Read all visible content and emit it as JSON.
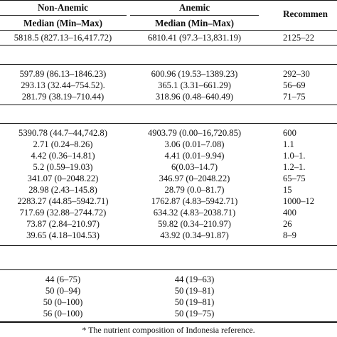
{
  "header": {
    "group1": "Non-Anemic",
    "group2": "Anemic",
    "group3": "Recommen",
    "sub1": "Median (Min–Max)",
    "sub2": "Median (Min–Max)"
  },
  "sections": [
    {
      "rows": [
        {
          "non_anemic": "5818.5 (827.13–16,417.72)",
          "anemic": "6810.41 (97.3–13,831.19)",
          "recommended": "2125–22"
        }
      ]
    },
    {
      "rows": [
        {
          "non_anemic": "597.89 (86.13–1846.23)",
          "anemic": "600.96 (19.53–1389.23)",
          "recommended": "292–30"
        },
        {
          "non_anemic": "293.13 (32.44–754.52).",
          "anemic": "365.1 (3.31–661.29)",
          "recommended": "56–69"
        },
        {
          "non_anemic": "281.79 (38.19–710.44)",
          "anemic": "318.96 (0.48–640.49)",
          "recommended": "71–75"
        }
      ]
    },
    {
      "rows": [
        {
          "non_anemic": "5390.78 (44.7–44,742.8)",
          "anemic": "4903.79 (0.00–16,720.85)",
          "recommended": "600"
        },
        {
          "non_anemic": "2.71 (0.24–8.26)",
          "anemic": "3.06 (0.01–7.08)",
          "recommended": "1.1"
        },
        {
          "non_anemic": "4.42 (0.36–14.81)",
          "anemic": "4.41 (0.01–9.94)",
          "recommended": "1.0–1."
        },
        {
          "non_anemic": "5.2 (0.59–19.03)",
          "anemic": "6(0.03–14.7)",
          "recommended": "1.2–1."
        },
        {
          "non_anemic": "341.07 (0–2048.22)",
          "anemic": "346.97 (0–2048.22)",
          "recommended": "65–75"
        },
        {
          "non_anemic": "28.98 (2.43–145.8)",
          "anemic": "28.79 (0.0–81.7)",
          "recommended": "15"
        },
        {
          "non_anemic": "2283.27 (44.85–5942.71)",
          "anemic": "1762.87 (4.83–5942.71)",
          "recommended": "1000–12"
        },
        {
          "non_anemic": "717.69 (32.88–2744.72)",
          "anemic": "634.32 (4.83–2038.71)",
          "recommended": "400"
        },
        {
          "non_anemic": "73.87 (2.84–210.97)",
          "anemic": "59.82 (0.34–210.97)",
          "recommended": "26"
        },
        {
          "non_anemic": "39.65 (4.18–104.53)",
          "anemic": "43.92 (0.34–91.87)",
          "recommended": "8–9"
        }
      ]
    },
    {
      "rows": [
        {
          "non_anemic": "44 (6–75)",
          "anemic": "44 (19–63)",
          "recommended": ""
        },
        {
          "non_anemic": "50 (0–94)",
          "anemic": "50 (19–81)",
          "recommended": ""
        },
        {
          "non_anemic": "50 (0–100)",
          "anemic": "50 (19–81)",
          "recommended": ""
        },
        {
          "non_anemic": "56 (0–100)",
          "anemic": "50 (19–75)",
          "recommended": ""
        }
      ]
    }
  ],
  "footnote": "* The nutrient composition of Indonesia reference."
}
